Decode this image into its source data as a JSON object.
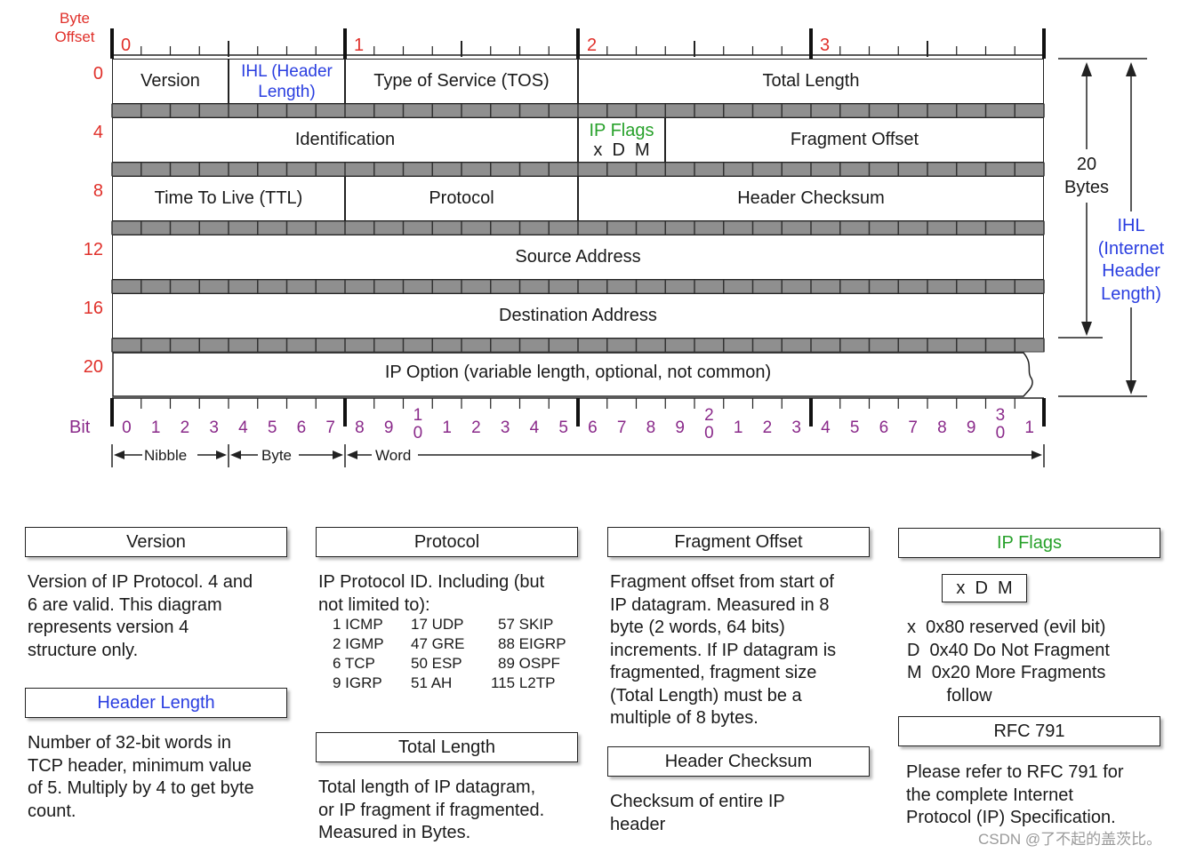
{
  "header": {
    "byte_offset_label": "Byte\nOffset",
    "byte_numbers": [
      "0",
      "1",
      "2",
      "3"
    ],
    "row_offsets": [
      "0",
      "4",
      "8",
      "12",
      "16",
      "20"
    ],
    "bit_label": "Bit"
  },
  "fields": {
    "version": "Version",
    "ihl": "IHL (Header\nLength)",
    "tos": "Type of Service (TOS)",
    "total_length": "Total Length",
    "identification": "Identification",
    "ip_flags_title": "IP Flags",
    "ip_flags_bits": "x  D  M",
    "fragment_offset": "Fragment Offset",
    "ttl": "Time To Live (TTL)",
    "protocol": "Protocol",
    "header_checksum": "Header Checksum",
    "source_address": "Source Address",
    "destination_address": "Destination Address",
    "ip_option": "IP Option (variable length, optional, not common)"
  },
  "bits": {
    "digits": [
      "0",
      "1",
      "2",
      "3",
      "4",
      "5",
      "6",
      "7",
      "8",
      "9",
      "1\n0",
      "1",
      "2",
      "3",
      "4",
      "5",
      "6",
      "7",
      "8",
      "9",
      "2\n0",
      "1",
      "2",
      "3",
      "4",
      "5",
      "6",
      "7",
      "8",
      "9",
      "3\n0",
      "1"
    ]
  },
  "scale": {
    "nibble": "Nibble",
    "byte": "Byte",
    "word": "Word"
  },
  "right_labels": {
    "twenty_bytes": "20\nBytes",
    "ihl": "IHL\n(Internet\nHeader\nLength)"
  },
  "cards": {
    "version": {
      "title": "Version",
      "body": "Version of IP Protocol.  4 and\n6 are valid.  This diagram\nrepresents version 4\nstructure only."
    },
    "header_length": {
      "title": "Header Length",
      "body": "Number of 32-bit words in\nTCP header, minimum value\nof 5.  Multiply by 4 to get byte\ncount."
    },
    "protocol": {
      "title": "Protocol",
      "body": "IP Protocol ID.  Including (but\nnot limited to):",
      "list": [
        [
          "1 ICMP",
          "17 UDP",
          "57 SKIP"
        ],
        [
          "2 IGMP",
          "47 GRE",
          "88 EIGRP"
        ],
        [
          "6 TCP",
          "50 ESP",
          "89 OSPF"
        ],
        [
          "9 IGRP",
          "51 AH",
          "115 L2TP"
        ]
      ]
    },
    "total_length": {
      "title": "Total Length",
      "body": "Total length of IP datagram,\nor IP fragment if fragmented.\nMeasured in Bytes."
    },
    "fragment_offset": {
      "title": "Fragment Offset",
      "body": "Fragment offset from start of\nIP datagram.  Measured in 8\nbyte (2 words, 64 bits)\nincrements.  If IP datagram is\nfragmented, fragment size\n(Total Length) must be a\nmultiple of 8 bytes."
    },
    "header_checksum": {
      "title": "Header Checksum",
      "body": "Checksum of entire IP\nheader"
    },
    "ip_flags": {
      "title": "IP Flags",
      "box": "x  D  M",
      "body": "x  0x80 reserved (evil bit)\nD  0x40 Do Not Fragment\nM  0x20 More Fragments\n        follow"
    },
    "rfc791": {
      "title": "RFC 791",
      "body": "Please refer to RFC 791 for\nthe complete Internet\nProtocol (IP) Specification."
    }
  },
  "watermark": "CSDN @了不起的盖茨比。",
  "colors": {
    "offsets": "#e0302a",
    "bits": "#8a2a8a",
    "ihl": "#2a3ee0",
    "flags": "#27a12a"
  }
}
